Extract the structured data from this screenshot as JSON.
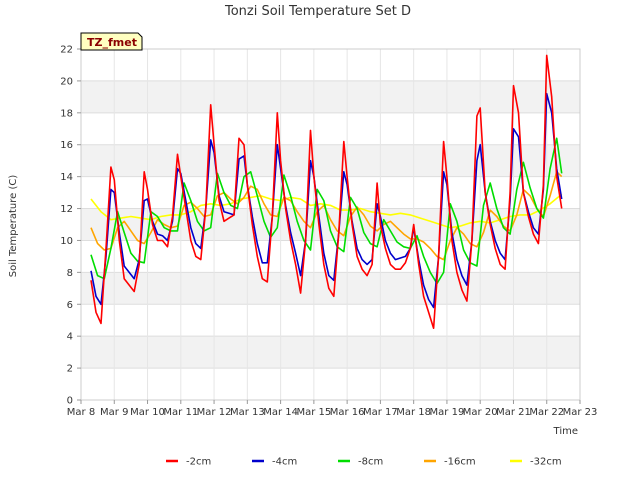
{
  "chart_data": {
    "type": "line",
    "title": "Tonzi Soil Temperature Set D",
    "xlabel": "Time",
    "ylabel": "Soil Temperature (C)",
    "site_label": "TZ_fmet",
    "xlim": [
      8,
      23
    ],
    "ylim": [
      0,
      22
    ],
    "x_ticks": [
      8,
      9,
      10,
      11,
      12,
      13,
      14,
      15,
      16,
      17,
      18,
      19,
      20,
      21,
      22,
      23
    ],
    "x_tick_labels": [
      "Mar 8",
      "Mar 9",
      "Mar 10",
      "Mar 11",
      "Mar 12",
      "Mar 13",
      "Mar 14",
      "Mar 15",
      "Mar 16",
      "Mar 17",
      "Mar 18",
      "Mar 19",
      "Mar 20",
      "Mar 21",
      "Mar 22",
      "Mar 23"
    ],
    "y_ticks": [
      0,
      2,
      4,
      6,
      8,
      10,
      12,
      14,
      16,
      18,
      20,
      22
    ],
    "y_tick_labels": [
      "0",
      "2",
      "4",
      "6",
      "8",
      "10",
      "12",
      "14",
      "16",
      "18",
      "20",
      "22"
    ],
    "grid": true,
    "legend_position": "bottom",
    "series": [
      {
        "name": "-2cm",
        "color": "#ff0000",
        "x": [
          8.3,
          8.45,
          8.6,
          8.75,
          8.9,
          9.0,
          9.15,
          9.3,
          9.45,
          9.6,
          9.75,
          9.9,
          10.0,
          10.15,
          10.3,
          10.45,
          10.6,
          10.75,
          10.9,
          11.0,
          11.15,
          11.3,
          11.45,
          11.6,
          11.75,
          11.9,
          12.0,
          12.15,
          12.3,
          12.45,
          12.6,
          12.75,
          12.9,
          13.0,
          13.15,
          13.3,
          13.45,
          13.6,
          13.75,
          13.9,
          14.0,
          14.15,
          14.3,
          14.45,
          14.6,
          14.75,
          14.9,
          15.0,
          15.15,
          15.3,
          15.45,
          15.6,
          15.75,
          15.9,
          16.0,
          16.15,
          16.3,
          16.45,
          16.6,
          16.75,
          16.9,
          17.0,
          17.15,
          17.3,
          17.45,
          17.6,
          17.75,
          17.9,
          18.0,
          18.15,
          18.3,
          18.45,
          18.6,
          18.75,
          18.9,
          19.0,
          19.15,
          19.3,
          19.45,
          19.6,
          19.75,
          19.9,
          20.0,
          20.15,
          20.3,
          20.45,
          20.6,
          20.75,
          20.9,
          21.0,
          21.15,
          21.3,
          21.45,
          21.6,
          21.75,
          21.9,
          22.0,
          22.15,
          22.3,
          22.45
        ],
        "y": [
          7.5,
          5.5,
          4.8,
          9.5,
          14.6,
          13.8,
          10.0,
          7.6,
          7.2,
          6.8,
          8.5,
          14.3,
          13.2,
          11.0,
          10.0,
          10.0,
          9.6,
          11.5,
          15.4,
          14.0,
          12.0,
          10.0,
          9.0,
          8.8,
          12.0,
          18.5,
          16.0,
          12.5,
          11.2,
          11.4,
          11.6,
          16.4,
          16.0,
          13.5,
          11.0,
          9.0,
          7.6,
          7.4,
          11.5,
          18.0,
          15.0,
          12.0,
          10.0,
          8.5,
          6.7,
          10.0,
          16.9,
          14.0,
          11.0,
          8.5,
          7.0,
          6.5,
          10.5,
          16.2,
          14.0,
          11.0,
          9.0,
          8.2,
          7.8,
          8.5,
          13.6,
          11.0,
          9.5,
          8.5,
          8.2,
          8.2,
          8.6,
          9.5,
          11.0,
          8.5,
          6.5,
          5.5,
          4.5,
          9.0,
          16.2,
          14.0,
          10.0,
          8.0,
          6.9,
          6.2,
          10.0,
          17.8,
          18.3,
          13.0,
          11.0,
          9.5,
          8.5,
          8.2,
          13.0,
          19.7,
          18.0,
          13.0,
          11.5,
          10.4,
          9.8,
          13.5,
          21.6,
          19.0,
          14.0,
          12.0
        ]
      },
      {
        "name": "-4cm",
        "color": "#0000cc",
        "x": [
          8.3,
          8.45,
          8.6,
          8.75,
          8.9,
          9.0,
          9.15,
          9.3,
          9.45,
          9.6,
          9.75,
          9.9,
          10.0,
          10.15,
          10.3,
          10.45,
          10.6,
          10.75,
          10.9,
          11.0,
          11.15,
          11.3,
          11.45,
          11.6,
          11.75,
          11.9,
          12.0,
          12.15,
          12.3,
          12.45,
          12.6,
          12.75,
          12.9,
          13.0,
          13.15,
          13.3,
          13.45,
          13.6,
          13.75,
          13.9,
          14.0,
          14.15,
          14.3,
          14.45,
          14.6,
          14.75,
          14.9,
          15.0,
          15.15,
          15.3,
          15.45,
          15.6,
          15.75,
          15.9,
          16.0,
          16.15,
          16.3,
          16.45,
          16.6,
          16.75,
          16.9,
          17.0,
          17.15,
          17.3,
          17.45,
          17.6,
          17.75,
          17.9,
          18.0,
          18.15,
          18.3,
          18.45,
          18.6,
          18.75,
          18.9,
          19.0,
          19.15,
          19.3,
          19.45,
          19.6,
          19.75,
          19.9,
          20.0,
          20.15,
          20.3,
          20.45,
          20.6,
          20.75,
          20.9,
          21.0,
          21.15,
          21.3,
          21.45,
          21.6,
          21.75,
          21.9,
          22.0,
          22.15,
          22.3,
          22.45
        ],
        "y": [
          8.1,
          6.5,
          6.0,
          9.0,
          13.2,
          13.0,
          10.5,
          8.4,
          8.0,
          7.6,
          8.8,
          12.5,
          12.6,
          11.2,
          10.4,
          10.3,
          10.0,
          11.2,
          14.5,
          14.2,
          12.5,
          10.8,
          9.8,
          9.5,
          12.0,
          16.3,
          15.5,
          12.8,
          11.8,
          11.7,
          11.6,
          15.1,
          15.3,
          13.5,
          11.5,
          9.8,
          8.6,
          8.6,
          11.5,
          16.0,
          14.5,
          12.2,
          10.5,
          9.2,
          7.8,
          10.0,
          15.0,
          14.0,
          11.5,
          9.2,
          7.8,
          7.5,
          10.5,
          14.3,
          13.5,
          11.2,
          9.5,
          8.8,
          8.5,
          8.8,
          12.3,
          11.5,
          10.0,
          9.2,
          8.8,
          8.9,
          9.0,
          9.5,
          10.8,
          8.8,
          7.2,
          6.3,
          5.8,
          9.0,
          14.3,
          13.5,
          10.5,
          8.8,
          7.8,
          7.2,
          10.0,
          15.0,
          16.0,
          13.0,
          11.2,
          10.0,
          9.2,
          8.8,
          12.5,
          17.0,
          16.5,
          13.0,
          11.8,
          10.8,
          10.4,
          13.2,
          19.2,
          18.0,
          14.5,
          12.6
        ]
      },
      {
        "name": "-8cm",
        "color": "#00dd00",
        "x": [
          8.3,
          8.5,
          8.7,
          8.9,
          9.1,
          9.3,
          9.5,
          9.7,
          9.9,
          10.1,
          10.3,
          10.5,
          10.7,
          10.9,
          11.1,
          11.3,
          11.5,
          11.7,
          11.9,
          12.1,
          12.3,
          12.5,
          12.7,
          12.9,
          13.1,
          13.3,
          13.5,
          13.7,
          13.9,
          14.1,
          14.3,
          14.5,
          14.7,
          14.9,
          15.1,
          15.3,
          15.5,
          15.7,
          15.9,
          16.1,
          16.3,
          16.5,
          16.7,
          16.9,
          17.1,
          17.3,
          17.5,
          17.7,
          17.9,
          18.1,
          18.3,
          18.5,
          18.7,
          18.9,
          19.1,
          19.3,
          19.5,
          19.7,
          19.9,
          20.1,
          20.3,
          20.5,
          20.7,
          20.9,
          21.1,
          21.3,
          21.5,
          21.7,
          21.9,
          22.1,
          22.3,
          22.45
        ],
        "y": [
          9.1,
          7.8,
          7.6,
          9.5,
          11.8,
          10.5,
          9.2,
          8.7,
          8.6,
          11.8,
          11.5,
          10.8,
          10.6,
          10.6,
          13.6,
          12.5,
          11.2,
          10.6,
          10.8,
          14.2,
          13.0,
          12.2,
          12.0,
          14.0,
          14.3,
          12.8,
          11.2,
          10.2,
          10.8,
          14.1,
          12.8,
          11.2,
          10.0,
          9.4,
          13.2,
          12.5,
          10.6,
          9.6,
          9.3,
          12.7,
          12.0,
          10.5,
          9.8,
          9.6,
          11.3,
          10.6,
          9.9,
          9.6,
          9.5,
          10.3,
          9.0,
          8.0,
          7.3,
          8.0,
          12.3,
          11.2,
          9.4,
          8.6,
          8.4,
          12.2,
          13.6,
          12.0,
          10.8,
          10.4,
          13.2,
          14.9,
          13.3,
          12.0,
          11.4,
          14.5,
          16.4,
          14.2
        ]
      },
      {
        "name": "-16cm",
        "color": "#ffa500",
        "x": [
          8.3,
          8.5,
          8.7,
          8.9,
          9.1,
          9.3,
          9.5,
          9.7,
          9.9,
          10.1,
          10.3,
          10.5,
          10.7,
          10.9,
          11.1,
          11.3,
          11.5,
          11.7,
          11.9,
          12.1,
          12.3,
          12.5,
          12.7,
          12.9,
          13.1,
          13.3,
          13.5,
          13.7,
          13.9,
          14.1,
          14.3,
          14.5,
          14.7,
          14.9,
          15.1,
          15.3,
          15.5,
          15.7,
          15.9,
          16.1,
          16.3,
          16.5,
          16.7,
          16.9,
          17.1,
          17.3,
          17.5,
          17.7,
          17.9,
          18.1,
          18.3,
          18.5,
          18.7,
          18.9,
          19.1,
          19.3,
          19.5,
          19.7,
          19.9,
          20.1,
          20.3,
          20.5,
          20.7,
          20.9,
          21.1,
          21.3,
          21.5,
          21.7,
          21.9,
          22.1,
          22.3,
          22.45
        ],
        "y": [
          10.8,
          9.8,
          9.4,
          9.5,
          10.8,
          11.2,
          10.6,
          10.0,
          9.8,
          10.5,
          11.3,
          11.0,
          10.8,
          10.9,
          12.2,
          12.4,
          12.0,
          11.5,
          11.6,
          12.8,
          13.0,
          12.6,
          12.3,
          12.7,
          13.4,
          13.2,
          12.3,
          11.6,
          11.5,
          12.7,
          12.5,
          11.8,
          11.2,
          10.8,
          11.8,
          12.2,
          11.3,
          10.6,
          10.3,
          11.5,
          12.1,
          11.6,
          10.9,
          10.6,
          11.0,
          11.2,
          10.8,
          10.4,
          10.1,
          10.1,
          9.9,
          9.5,
          9.0,
          8.8,
          10.0,
          10.8,
          10.4,
          9.8,
          9.6,
          10.5,
          11.9,
          11.5,
          10.9,
          10.6,
          11.6,
          13.2,
          12.8,
          12.0,
          11.5,
          12.8,
          14.3,
          14.0
        ]
      },
      {
        "name": "-32cm",
        "color": "#ffff00",
        "x": [
          8.3,
          8.6,
          8.9,
          9.2,
          9.5,
          9.8,
          10.1,
          10.4,
          10.7,
          11.0,
          11.3,
          11.6,
          11.9,
          12.2,
          12.5,
          12.8,
          13.1,
          13.4,
          13.7,
          14.0,
          14.3,
          14.6,
          14.9,
          15.2,
          15.5,
          15.8,
          16.1,
          16.4,
          16.7,
          17.0,
          17.3,
          17.6,
          17.9,
          18.2,
          18.5,
          18.8,
          19.1,
          19.4,
          19.7,
          20.0,
          20.3,
          20.6,
          20.9,
          21.2,
          21.5,
          21.8,
          22.1,
          22.45
        ],
        "y": [
          12.6,
          11.8,
          11.3,
          11.4,
          11.5,
          11.4,
          11.3,
          11.5,
          11.6,
          11.6,
          11.8,
          12.2,
          12.3,
          12.2,
          12.3,
          12.6,
          12.7,
          12.8,
          12.6,
          12.5,
          12.7,
          12.6,
          12.2,
          12.3,
          12.2,
          11.9,
          11.9,
          12.0,
          11.8,
          11.7,
          11.6,
          11.7,
          11.6,
          11.4,
          11.2,
          11.0,
          10.8,
          10.9,
          11.1,
          11.2,
          11.1,
          11.3,
          11.5,
          11.6,
          11.6,
          11.9,
          12.3,
          12.9
        ]
      }
    ]
  }
}
